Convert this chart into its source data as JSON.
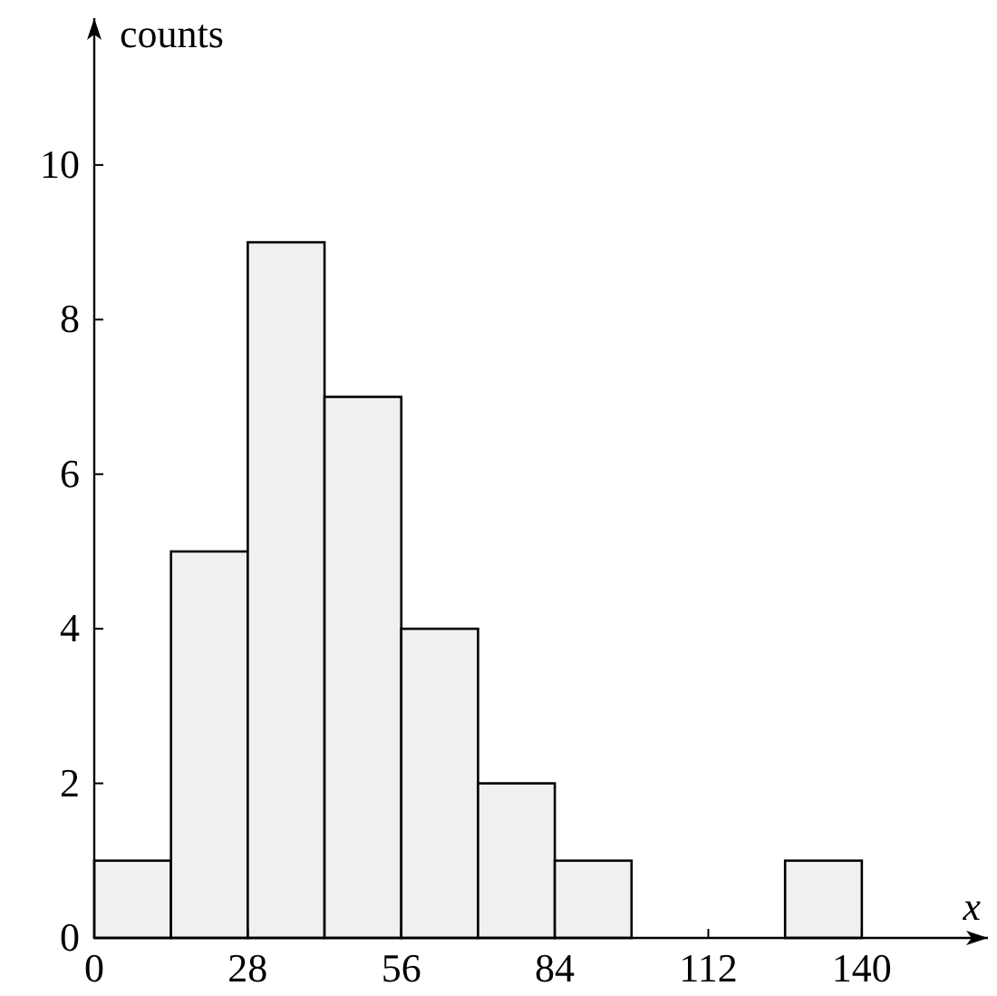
{
  "chart_data": {
    "type": "histogram",
    "xlabel": "x",
    "ylabel": "counts",
    "bins": [
      0,
      14,
      28,
      42,
      56,
      70,
      84,
      98,
      112,
      126,
      140
    ],
    "values": [
      1,
      5,
      9,
      7,
      4,
      2,
      1,
      0,
      0,
      1
    ],
    "color": "#f0f0f0",
    "xlim": [
      0,
      163
    ],
    "ylim": [
      0,
      11.9
    ],
    "xticks": [
      0,
      28,
      56,
      84,
      112,
      140
    ],
    "yticks": [
      0,
      2,
      4,
      6,
      8,
      10
    ],
    "grid": false
  }
}
